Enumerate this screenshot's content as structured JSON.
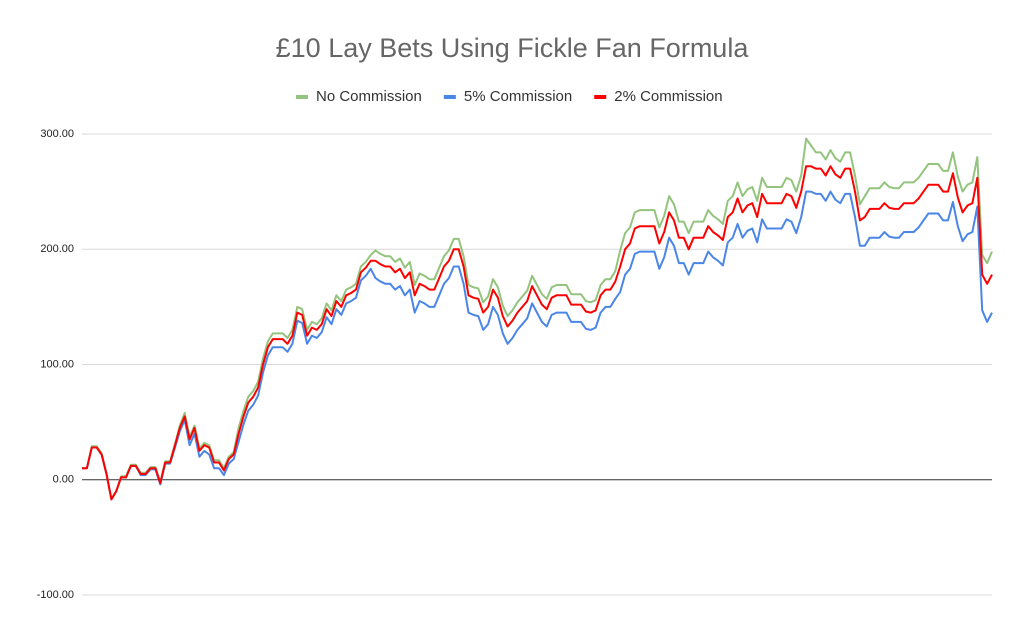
{
  "chart_data": {
    "type": "line",
    "title": "£10 Lay Bets Using Fickle Fan Formula",
    "ylim": [
      -100,
      300
    ],
    "yticks": [
      {
        "value": -100,
        "label": "-100.00"
      },
      {
        "value": 0,
        "label": "0.00"
      },
      {
        "value": 100,
        "label": "100.00"
      },
      {
        "value": 200,
        "label": "200.00"
      },
      {
        "value": 300,
        "label": "300.00"
      }
    ],
    "grid": true,
    "legend": "top",
    "series": [
      {
        "name": "No Commission",
        "color": "#93c47d",
        "values": [
          10,
          10,
          29,
          29,
          23,
          5,
          -17,
          -10,
          3,
          3,
          13,
          13,
          6,
          6,
          11,
          11,
          -2,
          16,
          16,
          31,
          47,
          58,
          37,
          47,
          27,
          32,
          30,
          17,
          17,
          10,
          20,
          24,
          45,
          60,
          72,
          77,
          85,
          105,
          120,
          127,
          127,
          127,
          123,
          130,
          150,
          148,
          130,
          137,
          135,
          140,
          153,
          147,
          160,
          155,
          165,
          167,
          170,
          185,
          189,
          195,
          199,
          196,
          194,
          194,
          189,
          192,
          184,
          189,
          169,
          179,
          177,
          174,
          174,
          184,
          194,
          199,
          209,
          209,
          194,
          169,
          167,
          166,
          154,
          159,
          174,
          167,
          151,
          142,
          147,
          154,
          159,
          164,
          177,
          169,
          161,
          157,
          167,
          169,
          169,
          169,
          161,
          161,
          161,
          155,
          154,
          156,
          169,
          174,
          174,
          181,
          199,
          214,
          219,
          232,
          234,
          234,
          234,
          234,
          219,
          229,
          246,
          239,
          224,
          224,
          214,
          224,
          224,
          224,
          234,
          229,
          226,
          222,
          242,
          246,
          258,
          246,
          252,
          254,
          242,
          262,
          254,
          254,
          254,
          254,
          262,
          260,
          250,
          264,
          296,
          290,
          284,
          284,
          278,
          286,
          279,
          276,
          284,
          284,
          264,
          239,
          246,
          253,
          253,
          253,
          258,
          254,
          253,
          253,
          258,
          258,
          258,
          262,
          268,
          274,
          274,
          274,
          268,
          268,
          284,
          263,
          250,
          256,
          258,
          280,
          195,
          188,
          198
        ]
      },
      {
        "name": "5% Commission",
        "color": "#4a86e8",
        "values": [
          10,
          10,
          28,
          28,
          22,
          5,
          -17,
          -10,
          2,
          2,
          12,
          12,
          4,
          4,
          9,
          9,
          -4,
          14,
          14,
          28,
          42,
          52,
          30,
          40,
          20,
          25,
          22,
          10,
          10,
          4,
          14,
          18,
          33,
          48,
          60,
          65,
          73,
          93,
          108,
          115,
          115,
          115,
          111,
          118,
          138,
          136,
          118,
          125,
          123,
          128,
          141,
          135,
          148,
          143,
          153,
          155,
          158,
          173,
          177,
          183,
          175,
          172,
          170,
          170,
          165,
          168,
          160,
          165,
          145,
          155,
          153,
          150,
          150,
          160,
          170,
          175,
          185,
          185,
          170,
          145,
          143,
          142,
          130,
          135,
          150,
          143,
          127,
          118,
          123,
          130,
          135,
          140,
          153,
          145,
          137,
          133,
          143,
          145,
          145,
          145,
          137,
          137,
          137,
          131,
          130,
          132,
          145,
          150,
          150,
          157,
          163,
          178,
          183,
          196,
          198,
          198,
          198,
          198,
          183,
          193,
          210,
          203,
          188,
          188,
          178,
          188,
          188,
          188,
          198,
          193,
          190,
          186,
          206,
          210,
          222,
          210,
          216,
          218,
          206,
          226,
          218,
          218,
          218,
          218,
          226,
          224,
          214,
          228,
          250,
          250,
          248,
          248,
          242,
          250,
          243,
          240,
          248,
          248,
          228,
          203,
          203,
          210,
          210,
          210,
          215,
          211,
          210,
          210,
          215,
          215,
          215,
          219,
          225,
          231,
          231,
          231,
          225,
          225,
          241,
          220,
          207,
          213,
          215,
          237,
          147,
          137,
          145
        ]
      },
      {
        "name": "2% Commission",
        "color": "#ff0000",
        "values": [
          10,
          10,
          28,
          28,
          22,
          5,
          -17,
          -10,
          2,
          2,
          12,
          12,
          5,
          5,
          10,
          10,
          -3,
          15,
          15,
          30,
          45,
          55,
          35,
          45,
          25,
          30,
          28,
          15,
          15,
          8,
          18,
          22,
          40,
          55,
          67,
          72,
          80,
          100,
          115,
          122,
          122,
          122,
          118,
          125,
          145,
          143,
          125,
          132,
          130,
          135,
          148,
          142,
          155,
          150,
          160,
          162,
          165,
          180,
          184,
          190,
          190,
          187,
          185,
          185,
          180,
          183,
          175,
          180,
          160,
          170,
          168,
          165,
          165,
          175,
          185,
          190,
          200,
          200,
          185,
          160,
          158,
          157,
          145,
          150,
          165,
          158,
          142,
          133,
          138,
          145,
          150,
          155,
          168,
          160,
          152,
          148,
          158,
          160,
          160,
          160,
          152,
          152,
          152,
          146,
          145,
          147,
          160,
          165,
          165,
          172,
          185,
          200,
          205,
          218,
          220,
          220,
          220,
          220,
          205,
          215,
          232,
          225,
          210,
          210,
          200,
          210,
          210,
          210,
          220,
          215,
          212,
          208,
          228,
          232,
          244,
          232,
          238,
          240,
          228,
          248,
          240,
          240,
          240,
          240,
          248,
          246,
          236,
          250,
          272,
          272,
          270,
          270,
          264,
          272,
          265,
          262,
          270,
          270,
          250,
          225,
          228,
          235,
          235,
          235,
          240,
          236,
          235,
          235,
          240,
          240,
          240,
          244,
          250,
          256,
          256,
          256,
          250,
          250,
          266,
          245,
          232,
          238,
          240,
          262,
          178,
          170,
          178
        ]
      }
    ]
  }
}
